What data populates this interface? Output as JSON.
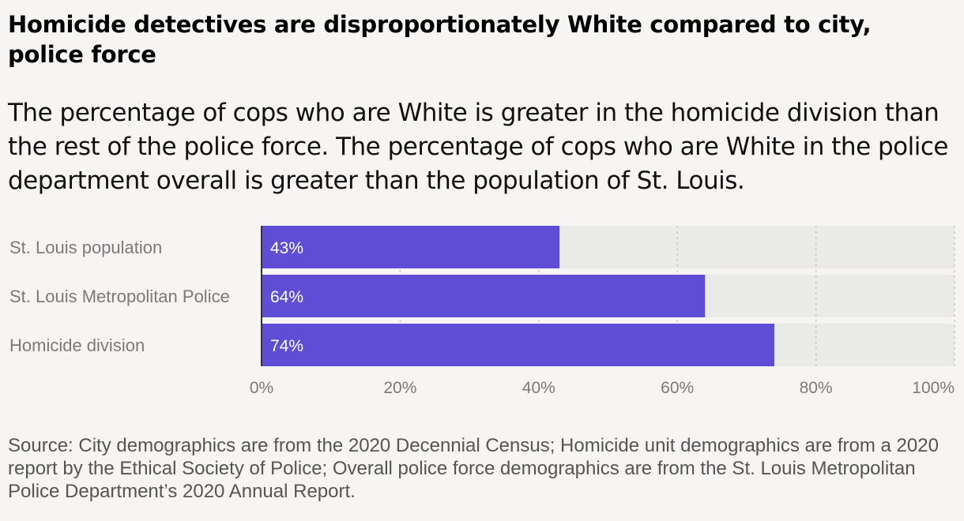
{
  "title": "Homicide detectives are disproportionately White compared to city, police force",
  "subtitle": "The percentage of cops who are White is greater in the homicide division than the rest of the police force. The percentage of cops who are White in the police department overall is greater than the population of St. Louis.",
  "source": "Source: City demographics are from the 2020 Decennial Census; Homicide unit demographics are from a 2020 report by the Ethical Society of Police; Overall police force demographics are from the St. Louis Metropolitan Police Department’s 2020 Annual Report.",
  "colors": {
    "bar": "#604dd6",
    "track": "#eaeae8",
    "grid": "#c4c4c4",
    "label": "#7a7a7a"
  },
  "chart_data": {
    "type": "bar",
    "orientation": "horizontal",
    "categories": [
      "St. Louis population",
      "St. Louis Metropolitan Police",
      "Homicide division"
    ],
    "values": [
      43,
      64,
      74
    ],
    "data_labels": [
      "43%",
      "64%",
      "74%"
    ],
    "x_ticks": [
      0,
      20,
      40,
      60,
      80,
      100
    ],
    "x_tick_labels": [
      "0%",
      "20%",
      "40%",
      "60%",
      "80%",
      "100%"
    ],
    "xlim": [
      0,
      100
    ],
    "grid": true
  }
}
